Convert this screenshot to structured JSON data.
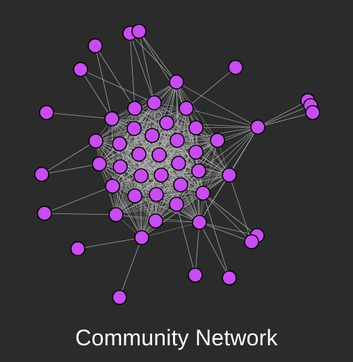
{
  "title": "Community Network",
  "colors": {
    "background": "#2b2b2b",
    "node_fill": "#c84cf0",
    "node_stroke": "#000000",
    "edge": "#bdbdbd",
    "title_text": "#ffffff"
  },
  "network": {
    "core_node_count": 46,
    "peripheral_node_count": 20,
    "node_count": 66
  }
}
